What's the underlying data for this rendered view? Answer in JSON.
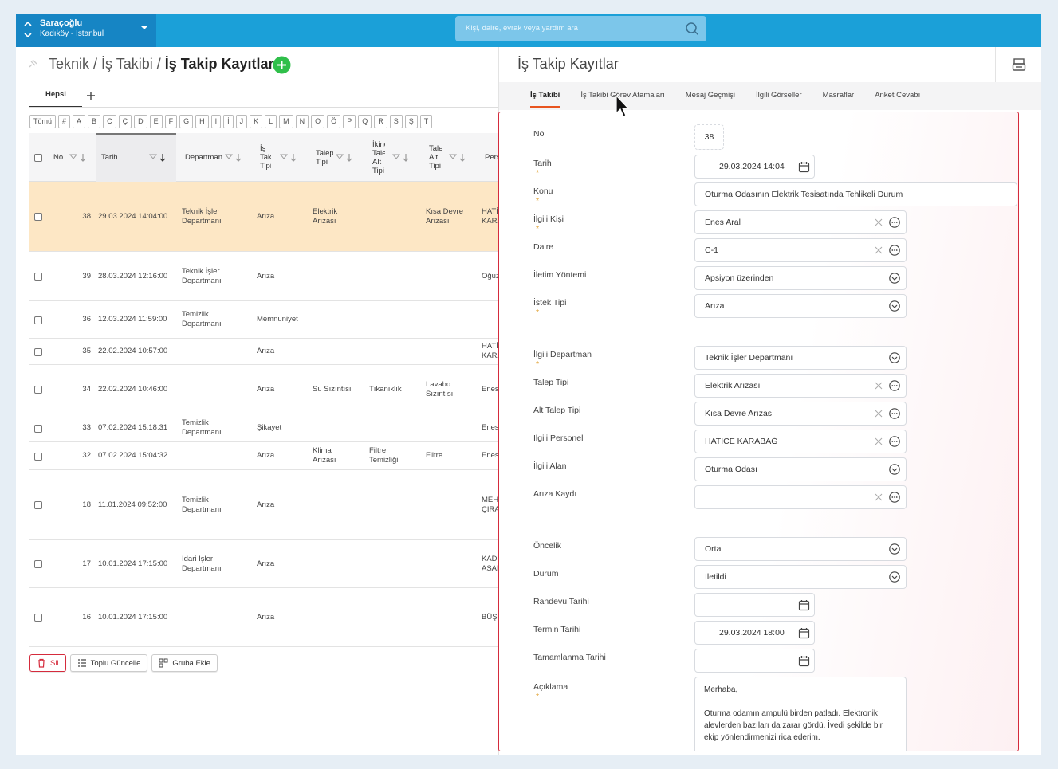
{
  "topbar": {
    "org": "Saraçoğlu",
    "location": "Kadıköy - İstanbul",
    "search_placeholder": "Kişi, daire, evrak veya yardım ara"
  },
  "breadcrumb": {
    "items": [
      "Teknik",
      "İş Takibi",
      "İş Takip Kayıtlar"
    ],
    "separator": "/"
  },
  "list": {
    "tabs": [
      "Hepsi"
    ],
    "letters": [
      "Tümü",
      "#",
      "A",
      "B",
      "C",
      "Ç",
      "D",
      "E",
      "F",
      "G",
      "H",
      "I",
      "İ",
      "J",
      "K",
      "L",
      "M",
      "N",
      "O",
      "Ö",
      "P",
      "Q",
      "R",
      "S",
      "Ş",
      "T"
    ],
    "columns": [
      "No",
      "Tarih",
      "Departman",
      "İş Takip Tipi",
      "Talep Tipi",
      "İkinci Talep Alt Tipi",
      "Talep Alt Tipi",
      "Pers"
    ],
    "rows": [
      [
        38,
        "29.03.2024 14:04:00",
        "Teknik İşler Departmanı",
        "Arıza",
        "Elektrik Arızası",
        null,
        "Kısa Devre Arızası",
        "HATİ KARA"
      ],
      [
        39,
        "28.03.2024 12:16:00",
        "Teknik İşler Departmanı",
        "Arıza",
        null,
        null,
        null,
        "Oğuz"
      ],
      [
        36,
        "12.03.2024 11:59:00",
        "Temizlik Departmanı",
        "Memnuniyet",
        null,
        null,
        null,
        null
      ],
      [
        35,
        "22.02.2024 10:57:00",
        null,
        "Arıza",
        null,
        null,
        null,
        "HATİ KARA"
      ],
      [
        34,
        "22.02.2024 10:46:00",
        null,
        "Arıza",
        "Su Sızıntısı",
        "Tıkanıklık",
        "Lavabo Sızıntısı",
        "Enes"
      ],
      [
        33,
        "07.02.2024 15:18:31",
        "Temizlik Departmanı",
        "Şikayet",
        null,
        null,
        null,
        "Enes"
      ],
      [
        32,
        "07.02.2024 15:04:32",
        null,
        "Arıza",
        "Klima Arızası",
        "Filtre Temizliği",
        "Filtre",
        "Enes"
      ],
      [
        18,
        "11.01.2024 09:52:00",
        "Temizlik Departmanı",
        "Arıza",
        null,
        null,
        null,
        "MEH ÇIRA"
      ],
      [
        17,
        "10.01.2024 17:15:00",
        "İdari İşler Departmanı",
        "Arıza",
        null,
        null,
        null,
        "KADI ASAN"
      ],
      [
        16,
        "10.01.2024 17:15:00",
        null,
        "Arıza",
        null,
        null,
        null,
        "BÜŞR"
      ]
    ],
    "selected_row": 0,
    "actions": [
      "Sil",
      "Toplu Güncelle",
      "Gruba Ekle"
    ]
  },
  "detail": {
    "title": "İş Takip Kayıtlar",
    "tabs": [
      "İş Takibi",
      "İş Takibi Görev Atamaları",
      "Mesaj Geçmişi",
      "İlgili Görseller",
      "Masraflar",
      "Anket Cevabı"
    ],
    "active_tab": 0,
    "required_mark": "*",
    "fields": [
      {
        "label": "No",
        "value": "38",
        "required": false,
        "control": "readonly"
      },
      {
        "label": "Tarih",
        "value": "29.03.2024 14:04",
        "required": true,
        "control": "date"
      },
      {
        "label": "Konu",
        "value": "Oturma  Odasının Elektrik Tesisatında Tehlikeli Durum",
        "required": true,
        "control": "text"
      },
      {
        "label": "İlgili Kişi",
        "value": "Enes Aral",
        "required": true,
        "control": "lookup"
      },
      {
        "label": "Daire",
        "value": "C-1",
        "required": false,
        "control": "lookup"
      },
      {
        "label": "İletim Yöntemi",
        "value": "Apsiyon üzerinden",
        "required": false,
        "control": "select"
      },
      {
        "label": "İstek Tipi",
        "value": "Arıza",
        "required": true,
        "control": "select"
      },
      {
        "label": "İlgili Departman",
        "value": "Teknik İşler Departmanı",
        "required": true,
        "control": "select"
      },
      {
        "label": "Talep Tipi",
        "value": "Elektrik Arızası",
        "required": false,
        "control": "lookup"
      },
      {
        "label": "Alt Talep Tipi",
        "value": "Kısa Devre Arızası",
        "required": false,
        "control": "lookup"
      },
      {
        "label": "İlgili Personel",
        "value": "HATİCE KARABAĞ",
        "required": false,
        "control": "lookup"
      },
      {
        "label": "İlgili Alan",
        "value": "Oturma Odası",
        "required": false,
        "control": "select"
      },
      {
        "label": "Arıza Kaydı",
        "value": null,
        "required": false,
        "control": "lookup"
      },
      {
        "label": "Öncelik",
        "value": "Orta",
        "required": false,
        "control": "select"
      },
      {
        "label": "Durum",
        "value": "İletildi",
        "required": false,
        "control": "select"
      },
      {
        "label": "Randevu Tarihi",
        "value": null,
        "required": false,
        "control": "date"
      },
      {
        "label": "Termin Tarihi",
        "value": "29.03.2024 18:00",
        "required": false,
        "control": "date"
      },
      {
        "label": "Tamamlanma Tarihi",
        "value": null,
        "required": false,
        "control": "date"
      },
      {
        "label": "Açıklama",
        "value": "Merhaba,\n\nOturma odamın ampulü birden patladı. Elektronik alevlerden bazıları da zarar gördü. İvedi şekilde bir ekip yönlendirmenizi rica ederim.",
        "required": true,
        "control": "textarea"
      }
    ]
  }
}
